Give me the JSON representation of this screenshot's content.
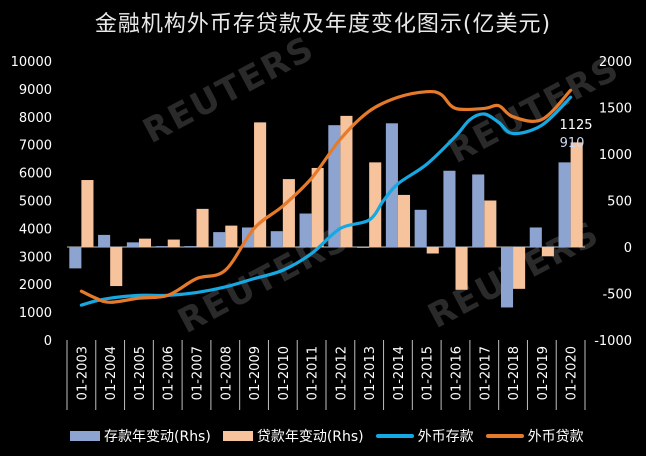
{
  "chart_data": {
    "type": "bar+line",
    "title": "金融机构外币存贷款及年度变化图示(亿美元)",
    "categories": [
      "01-2003",
      "01-2004",
      "01-2005",
      "01-2006",
      "01-2007",
      "01-2008",
      "01-2009",
      "01-2010",
      "01-2011",
      "01-2012",
      "01-2013",
      "01-2014",
      "01-2015",
      "01-2016",
      "01-2017",
      "01-2018",
      "01-2019",
      "01-2020"
    ],
    "left_axis": {
      "ylim": [
        0,
        10000
      ],
      "ticks": [
        0,
        1000,
        2000,
        3000,
        4000,
        5000,
        6000,
        7000,
        8000,
        9000,
        10000
      ]
    },
    "right_axis": {
      "ylim": [
        -1000,
        2000
      ],
      "ticks": [
        -1000,
        -500,
        0,
        500,
        1000,
        1500,
        2000
      ]
    },
    "bar_series": [
      {
        "name": "存款年变动(Rhs)",
        "color": "#8ea4d0",
        "axis": "right",
        "values": [
          -230,
          130,
          50,
          10,
          10,
          160,
          210,
          170,
          360,
          1310,
          0,
          1330,
          400,
          820,
          780,
          -650,
          210,
          910
        ]
      },
      {
        "name": "贷款年变动(Rhs)",
        "color": "#f7c39d",
        "axis": "right",
        "values": [
          720,
          -420,
          90,
          80,
          410,
          230,
          1340,
          730,
          850,
          1410,
          910,
          560,
          -70,
          -460,
          500,
          -450,
          -100,
          1125
        ]
      }
    ],
    "line_series": [
      {
        "name": "外币存款",
        "color": "#16a8e3",
        "axis": "left",
        "points": [
          [
            0,
            1250
          ],
          [
            0.5,
            1400
          ],
          [
            1,
            1500
          ],
          [
            2,
            1600
          ],
          [
            3,
            1600
          ],
          [
            4,
            1700
          ],
          [
            5,
            1900
          ],
          [
            6,
            2200
          ],
          [
            7,
            2500
          ],
          [
            8,
            3100
          ],
          [
            9,
            4000
          ],
          [
            10,
            4300
          ],
          [
            10.5,
            5000
          ],
          [
            11,
            5600
          ],
          [
            12,
            6300
          ],
          [
            13,
            7300
          ],
          [
            13.5,
            7900
          ],
          [
            14,
            8100
          ],
          [
            14.5,
            7800
          ],
          [
            15,
            7400
          ],
          [
            16,
            7700
          ],
          [
            17,
            8700
          ]
        ]
      },
      {
        "name": "外币贷款",
        "color": "#e57a2a",
        "axis": "left",
        "points": [
          [
            0,
            1750
          ],
          [
            0.5,
            1500
          ],
          [
            1,
            1350
          ],
          [
            2,
            1500
          ],
          [
            3,
            1600
          ],
          [
            4,
            2200
          ],
          [
            5,
            2500
          ],
          [
            6,
            4000
          ],
          [
            7,
            4800
          ],
          [
            8,
            5800
          ],
          [
            9,
            7200
          ],
          [
            10,
            8200
          ],
          [
            11,
            8700
          ],
          [
            12,
            8900
          ],
          [
            12.5,
            8800
          ],
          [
            13,
            8300
          ],
          [
            14,
            8300
          ],
          [
            14.5,
            8400
          ],
          [
            15,
            8000
          ],
          [
            16,
            7900
          ],
          [
            17,
            8950
          ]
        ]
      }
    ],
    "annotations": [
      {
        "text": "1125",
        "category": "01-2020",
        "series": "贷款年变动(Rhs)"
      },
      {
        "text": "910",
        "category": "01-2020",
        "series": "存款年变动(Rhs)"
      }
    ],
    "grid": false,
    "legend_position": "bottom"
  },
  "watermark": {
    "text": "REUTERS"
  }
}
